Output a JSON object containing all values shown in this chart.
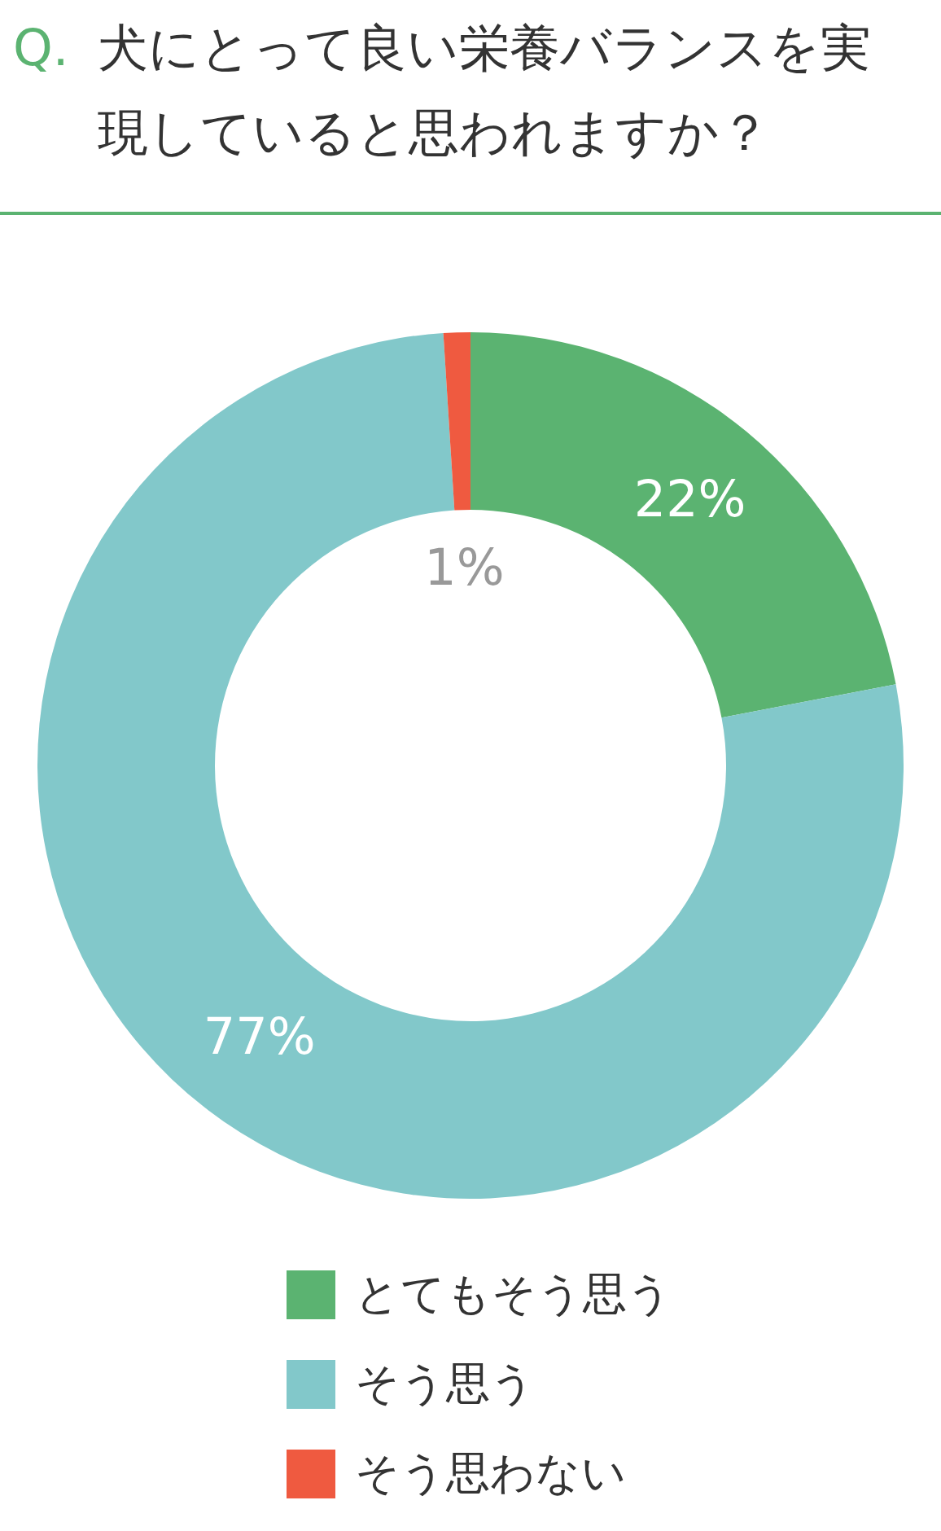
{
  "chart_data": {
    "type": "donut",
    "title": "Q. 犬にとって良い栄養バランスを実現していると思われますか？",
    "categories": [
      "とてもそう思う",
      "そう思う",
      "そう思わない"
    ],
    "values": [
      22,
      77,
      1
    ],
    "value_labels": [
      "22%",
      "77%",
      "1%"
    ],
    "colors": [
      "#5bb371",
      "#82c8ca",
      "#ef5a40"
    ],
    "legend": "bottom"
  }
}
